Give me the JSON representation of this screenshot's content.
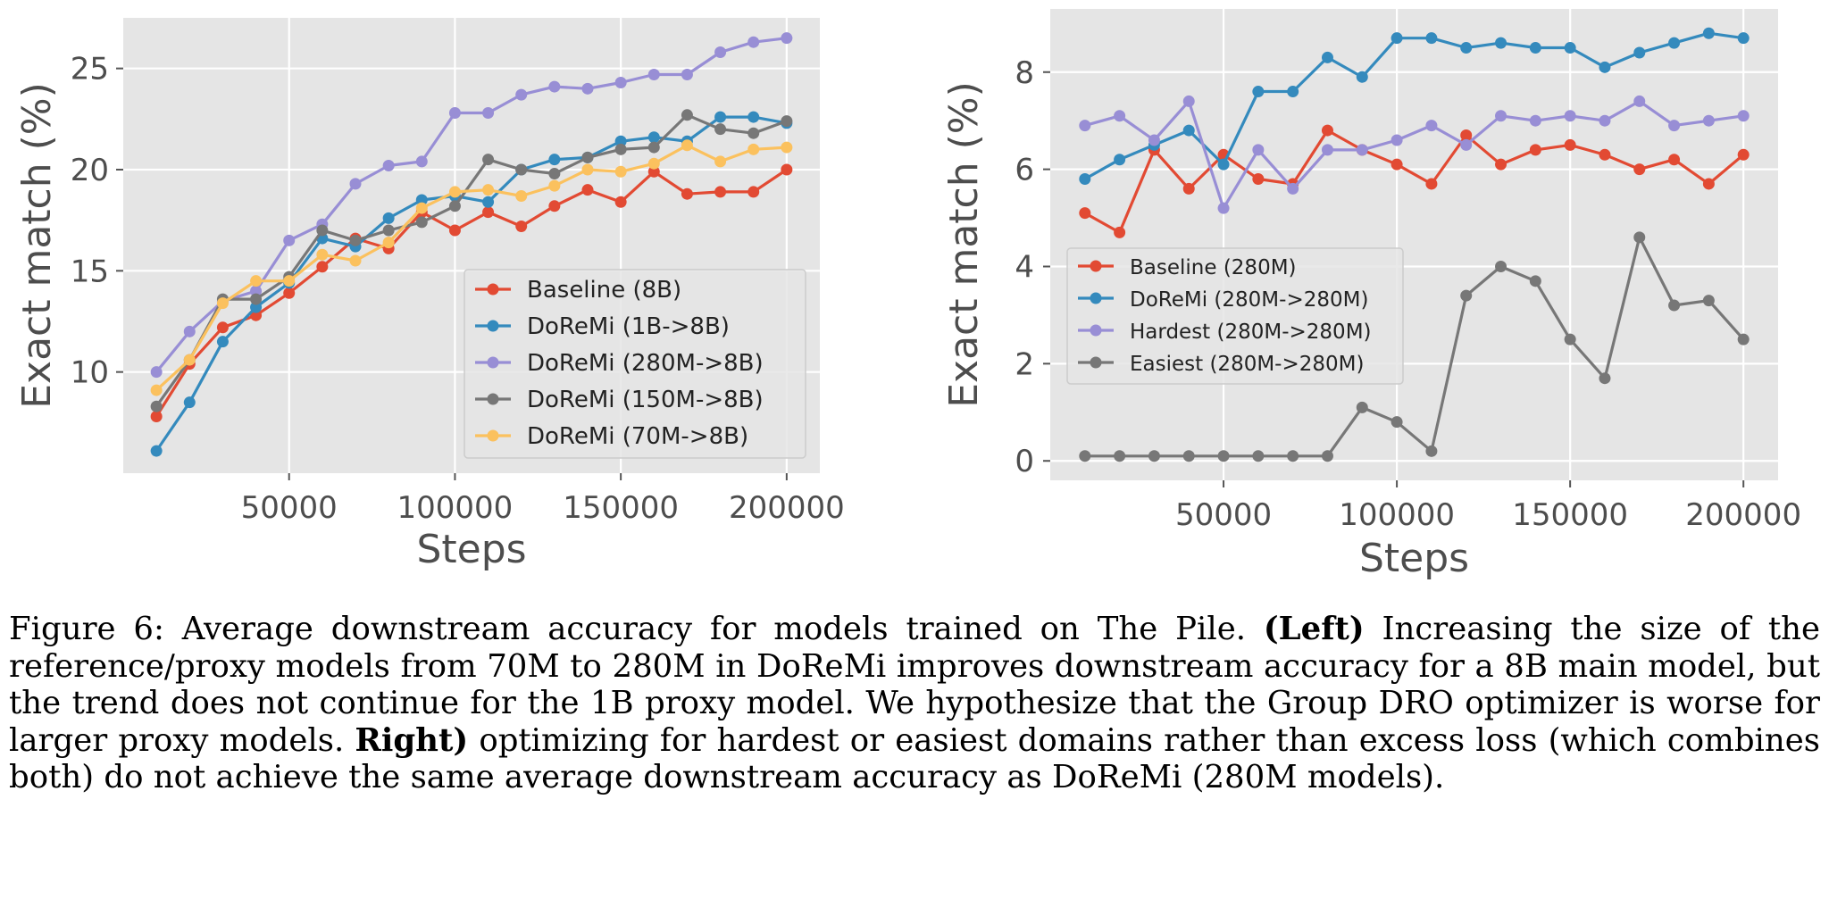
{
  "chart_data": [
    {
      "type": "line",
      "xlabel": "Steps",
      "ylabel": "Exact match (%)",
      "xlim": [
        0,
        210000
      ],
      "ylim": [
        5,
        27.5
      ],
      "xticks": [
        50000,
        100000,
        150000,
        200000
      ],
      "yticks": [
        10,
        15,
        20,
        25
      ],
      "grid": true,
      "legend_position": "lower-right",
      "x": [
        10000,
        20000,
        30000,
        40000,
        50000,
        60000,
        70000,
        80000,
        90000,
        100000,
        110000,
        120000,
        130000,
        140000,
        150000,
        160000,
        170000,
        180000,
        190000,
        200000
      ],
      "series": [
        {
          "name": "Baseline (8B)",
          "color": "#e24a33",
          "values": [
            7.8,
            10.4,
            12.2,
            12.8,
            13.9,
            15.2,
            16.6,
            16.1,
            17.9,
            17.0,
            17.9,
            17.2,
            18.2,
            19.0,
            18.4,
            19.9,
            18.8,
            18.9,
            18.9,
            20.0
          ]
        },
        {
          "name": "DoReMi (1B->8B)",
          "color": "#348abd",
          "values": [
            6.1,
            8.5,
            11.5,
            13.2,
            14.4,
            16.6,
            16.2,
            17.6,
            18.5,
            18.7,
            18.4,
            20.0,
            20.5,
            20.6,
            21.4,
            21.6,
            21.4,
            22.6,
            22.6,
            22.3
          ]
        },
        {
          "name": "DoReMi (280M->8B)",
          "color": "#988ed5",
          "values": [
            10.0,
            12.0,
            13.5,
            14.0,
            16.5,
            17.3,
            19.3,
            20.2,
            20.4,
            22.8,
            22.8,
            23.7,
            24.1,
            24.0,
            24.3,
            24.7,
            24.7,
            25.8,
            26.3,
            26.5
          ]
        },
        {
          "name": "DoReMi (150M->8B)",
          "color": "#777777",
          "values": [
            8.3,
            10.6,
            13.6,
            13.6,
            14.7,
            17.0,
            16.5,
            17.0,
            17.4,
            18.2,
            20.5,
            20.0,
            19.8,
            20.6,
            21.0,
            21.1,
            22.7,
            22.0,
            21.8,
            22.4
          ]
        },
        {
          "name": "DoReMi (70M->8B)",
          "color": "#fbc15e",
          "values": [
            9.1,
            10.6,
            13.4,
            14.5,
            14.5,
            15.8,
            15.5,
            16.4,
            18.1,
            18.9,
            19.0,
            18.7,
            19.2,
            20.0,
            19.9,
            20.3,
            21.2,
            20.4,
            21.0,
            21.1
          ]
        }
      ]
    },
    {
      "type": "line",
      "xlabel": "Steps",
      "ylabel": "Exact match (%)",
      "xlim": [
        0,
        210000
      ],
      "ylim": [
        -0.4,
        9.3
      ],
      "xticks": [
        50000,
        100000,
        150000,
        200000
      ],
      "yticks": [
        0,
        2,
        4,
        6,
        8
      ],
      "grid": true,
      "legend_position": "center-left",
      "x": [
        10000,
        20000,
        30000,
        40000,
        50000,
        60000,
        70000,
        80000,
        90000,
        100000,
        110000,
        120000,
        130000,
        140000,
        150000,
        160000,
        170000,
        180000,
        190000,
        200000
      ],
      "series": [
        {
          "name": "Baseline (280M)",
          "color": "#e24a33",
          "values": [
            5.1,
            4.7,
            6.4,
            5.6,
            6.3,
            5.8,
            5.7,
            6.8,
            6.4,
            6.1,
            5.7,
            6.7,
            6.1,
            6.4,
            6.5,
            6.3,
            6.0,
            6.2,
            5.7,
            6.3
          ]
        },
        {
          "name": "DoReMi (280M->280M)",
          "color": "#348abd",
          "values": [
            5.8,
            6.2,
            6.5,
            6.8,
            6.1,
            7.6,
            7.6,
            8.3,
            7.9,
            8.7,
            8.7,
            8.5,
            8.6,
            8.5,
            8.5,
            8.1,
            8.4,
            8.6,
            8.8,
            8.7
          ]
        },
        {
          "name": "Hardest (280M->280M)",
          "color": "#988ed5",
          "values": [
            6.9,
            7.1,
            6.6,
            7.4,
            5.2,
            6.4,
            5.6,
            6.4,
            6.4,
            6.6,
            6.9,
            6.5,
            7.1,
            7.0,
            7.1,
            7.0,
            7.4,
            6.9,
            7.0,
            7.1
          ]
        },
        {
          "name": "Easiest (280M->280M)",
          "color": "#777777",
          "values": [
            0.1,
            0.1,
            0.1,
            0.1,
            0.1,
            0.1,
            0.1,
            0.1,
            1.1,
            0.8,
            0.2,
            3.4,
            4.0,
            3.7,
            2.5,
            1.7,
            4.6,
            3.2,
            3.3,
            2.5
          ]
        }
      ]
    }
  ],
  "caption": {
    "label": "Figure 6:",
    "part1": " Average downstream accuracy for models trained on The Pile. ",
    "bold1": "(Left)",
    "part2": " Increasing the size of the reference/proxy models from 70M to 280M in DoReMi improves downstream accuracy for a 8B main model, but the trend does not continue for the 1B proxy model.  We hypothesize that the Group DRO optimizer is worse for larger proxy models.  ",
    "bold2": "Right)",
    "part3": " optimizing for hardest or easiest domains rather than excess loss (which combines both) do not achieve the same average downstream accuracy as DoReMi (280M models)."
  }
}
